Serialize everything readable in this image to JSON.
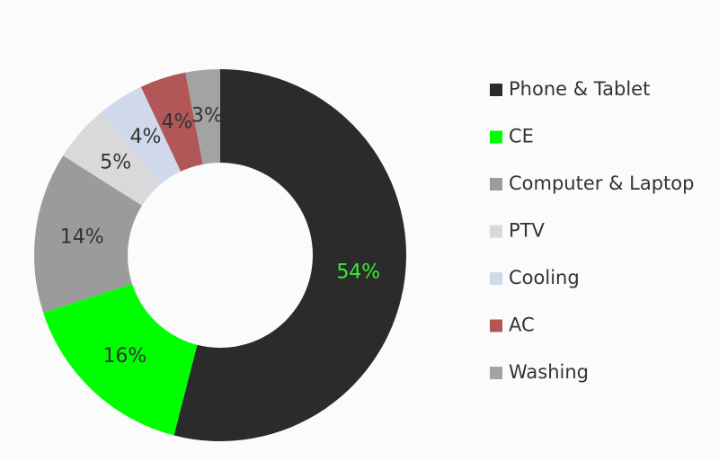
{
  "chart_data": {
    "type": "donut",
    "categories": [
      "Phone & Tablet",
      "CE",
      "Computer & Laptop",
      "PTV",
      "Cooling",
      "AC",
      "Washing"
    ],
    "values": [
      54,
      16,
      14,
      5,
      4,
      4,
      3
    ],
    "value_labels": [
      "54%",
      "16%",
      "14%",
      "5%",
      "4%",
      "4%",
      "3%"
    ],
    "colors": [
      "#2b2b2b",
      "#00ff00",
      "#9b9b9b",
      "#d9d9db",
      "#d0d8ec",
      "#b15757",
      "#a3a3a3"
    ],
    "legend": "right"
  }
}
